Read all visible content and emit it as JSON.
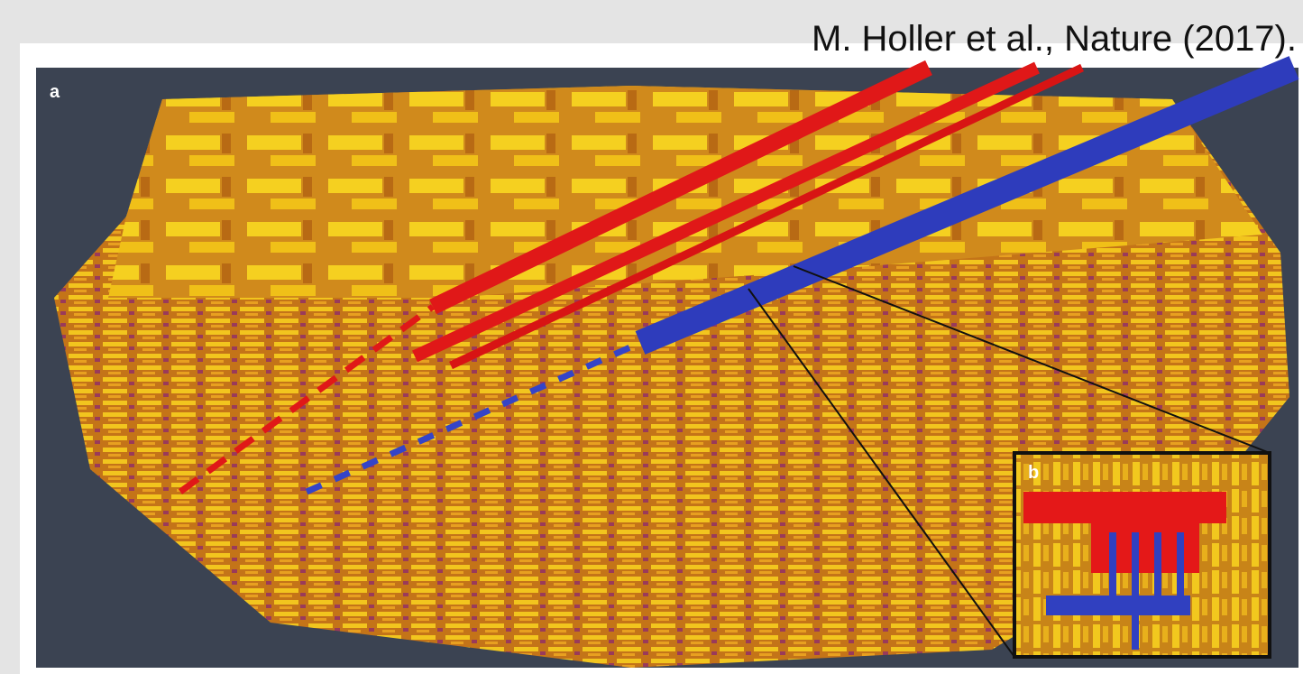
{
  "citation": "M. Holler et al., Nature (2017).",
  "panels": [
    {
      "label": "a"
    },
    {
      "label": "b"
    }
  ]
}
